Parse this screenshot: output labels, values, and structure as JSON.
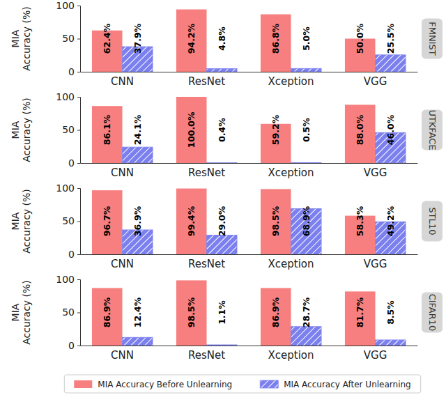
{
  "chart_data": [
    {
      "type": "bar",
      "title": "FMNIST",
      "y_label": "MIA Accuracy (%)",
      "categories": [
        "CNN",
        "ResNet",
        "Xception",
        "VGG"
      ],
      "series": [
        {
          "color": "#f77f7f",
          "values": [
            62.4,
            94.2,
            86.8,
            50.0
          ],
          "value_labels": [
            "62.4%",
            "94.2%",
            "86.8%",
            "50.0%"
          ]
        },
        {
          "color": "#7c80ee",
          "values": [
            37.9,
            4.8,
            5.0,
            25.5
          ],
          "value_labels": [
            "37.9%",
            "4.8%",
            "5.0%",
            "25.5%"
          ]
        }
      ],
      "ylim": [
        0,
        100
      ],
      "yticks": [
        0,
        50,
        100
      ],
      "grid": false,
      "data_labels": true
    },
    {
      "type": "bar",
      "title": "UTKFACE",
      "y_label": "MIA Accuracy (%)",
      "categories": [
        "CNN",
        "ResNet",
        "Xception",
        "VGG"
      ],
      "series": [
        {
          "color": "#f77f7f",
          "values": [
            86.1,
            100.0,
            59.2,
            88.0
          ],
          "value_labels": [
            "86.1%",
            "100.0%",
            "59.2%",
            "88.0%"
          ]
        },
        {
          "color": "#7c80ee",
          "values": [
            24.1,
            0.4,
            0.5,
            46.0
          ],
          "value_labels": [
            "24.1%",
            "0.4%",
            "0.5%",
            "46.0%"
          ]
        }
      ],
      "ylim": [
        0,
        100
      ],
      "yticks": [
        0,
        50,
        100
      ],
      "grid": false,
      "data_labels": true
    },
    {
      "type": "bar",
      "title": "STL10",
      "y_label": "MIA Accuracy (%)",
      "categories": [
        "CNN",
        "ResNet",
        "Xception",
        "VGG"
      ],
      "series": [
        {
          "color": "#f77f7f",
          "values": [
            96.7,
            99.4,
            98.5,
            58.3
          ],
          "value_labels": [
            "96.7%",
            "99.4%",
            "98.5%",
            "58.3%"
          ]
        },
        {
          "color": "#7c80ee",
          "values": [
            36.9,
            29.0,
            68.9,
            49.2
          ],
          "value_labels": [
            "36.9%",
            "29.0%",
            "68.9%",
            "49.2%"
          ]
        }
      ],
      "ylim": [
        0,
        100
      ],
      "yticks": [
        0,
        50,
        100
      ],
      "grid": false,
      "data_labels": true
    },
    {
      "type": "bar",
      "title": "CIFAR10",
      "y_label": "MIA Accuracy (%)",
      "categories": [
        "CNN",
        "ResNet",
        "Xception",
        "VGG"
      ],
      "series": [
        {
          "name": "MIA Accuracy Before Unlearning",
          "color": "#f77f7f",
          "values": [
            86.9,
            98.5,
            86.9,
            81.7
          ],
          "value_labels": [
            "86.9%",
            "98.5%",
            "86.9%",
            "81.7%"
          ]
        },
        {
          "name": "MIA Accuracy After Unlearning",
          "color": "#7c80ee",
          "values": [
            12.4,
            1.1,
            28.7,
            8.5
          ],
          "value_labels": [
            "12.4%",
            "1.1%",
            "28.7%",
            "8.5%"
          ]
        }
      ],
      "ylim": [
        0,
        100
      ],
      "yticks": [
        0,
        50,
        100
      ],
      "grid": false,
      "data_labels": true,
      "legend": "bottom"
    }
  ]
}
